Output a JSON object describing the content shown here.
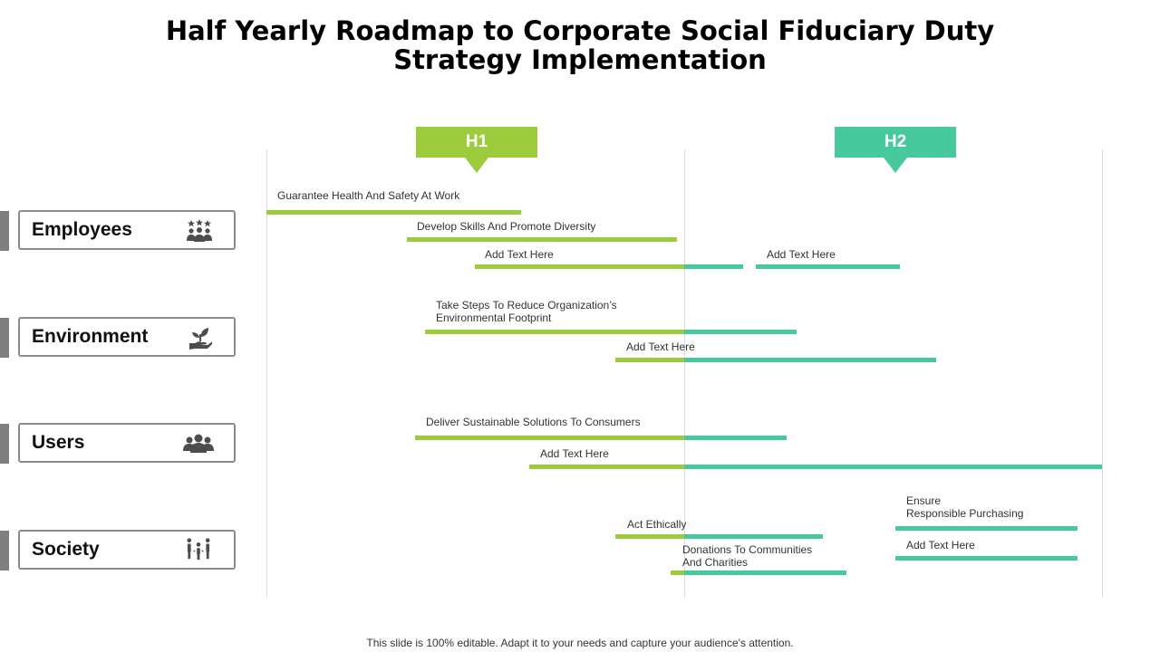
{
  "title": {
    "line1": "Half Yearly Roadmap to Corporate Social Fiduciary Duty",
    "line2": "Strategy Implementation"
  },
  "colors": {
    "h1": "#9ccb3c",
    "h2": "#47c99d",
    "accent": "#7f7f7f"
  },
  "phases": [
    {
      "label": "H1"
    },
    {
      "label": "H2"
    }
  ],
  "categories": [
    {
      "label": "Employees",
      "icon": "team-award-icon"
    },
    {
      "label": "Environment",
      "icon": "hand-plant-icon"
    },
    {
      "label": "Users",
      "icon": "user-group-icon"
    },
    {
      "label": "Society",
      "icon": "community-icon"
    }
  ],
  "tasks": [
    {
      "label": "Guarantee Health And Safety At Work",
      "start": 0.0,
      "end": 0.305
    },
    {
      "label": "Develop Skills And Promote Diversity",
      "start": 0.168,
      "end": 0.491
    },
    {
      "label": "Add Text Here",
      "start": 0.249,
      "end": 0.571
    },
    {
      "label": "Add Text Here",
      "start": 0.586,
      "end": 0.758
    },
    {
      "label": "Take Steps To Reduce Organization’s\nEnvironmental Footprint",
      "start": 0.19,
      "end": 0.635
    },
    {
      "label": "Add Text Here",
      "start": 0.418,
      "end": 0.802
    },
    {
      "label": "Deliver Sustainable Solutions To Consumers",
      "start": 0.178,
      "end": 0.623
    },
    {
      "label": "Add Text Here",
      "start": 0.315,
      "end": 1.0
    },
    {
      "label": "Act Ethically",
      "start": 0.418,
      "end": 0.666
    },
    {
      "label": "Donations To Communities\nAnd Charities",
      "start": 0.484,
      "end": 0.694
    },
    {
      "label": "Ensure\nResponsible Purchasing",
      "start": 0.753,
      "end": 0.971
    },
    {
      "label": "Add Text Here",
      "start": 0.753,
      "end": 0.971
    }
  ],
  "footer": "This slide is 100% editable. Adapt it to your needs and capture your audience's attention."
}
